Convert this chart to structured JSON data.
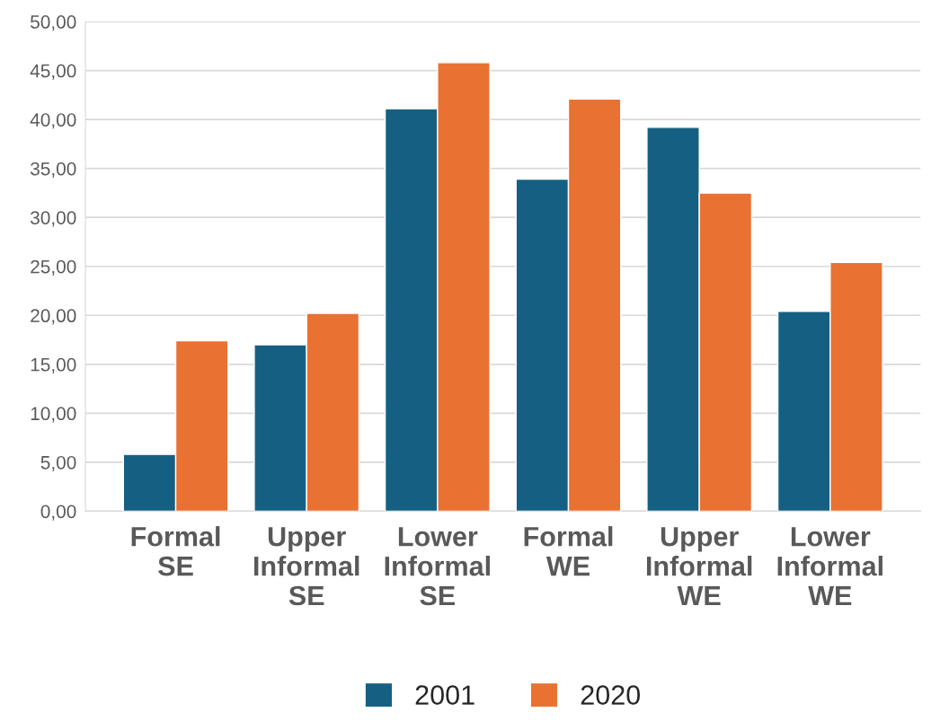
{
  "chart_data": {
    "type": "bar",
    "categories": [
      "Formal\nSE",
      "Upper\nInformal\nSE",
      "Lower\nInformal\nSE",
      "Formal\nWE",
      "Upper\nInformal\nWE",
      "Lower\nInformal\nWE"
    ],
    "series": [
      {
        "name": "2001",
        "color": "#156082",
        "values": [
          5.8,
          17.0,
          41.1,
          33.9,
          39.2,
          20.4
        ]
      },
      {
        "name": "2020",
        "color": "#e97132",
        "values": [
          17.4,
          20.2,
          45.8,
          42.1,
          32.5,
          25.4
        ]
      }
    ],
    "ylim": [
      0,
      50
    ],
    "yticks": [
      {
        "value": 0,
        "label": "0,00"
      },
      {
        "value": 5,
        "label": "5,00"
      },
      {
        "value": 10,
        "label": "10,00"
      },
      {
        "value": 15,
        "label": "15,00"
      },
      {
        "value": 20,
        "label": "20,00"
      },
      {
        "value": 25,
        "label": "25,00"
      },
      {
        "value": 30,
        "label": "30,00"
      },
      {
        "value": 35,
        "label": "35,00"
      },
      {
        "value": 40,
        "label": "40,00"
      },
      {
        "value": 45,
        "label": "45,00"
      },
      {
        "value": 50,
        "label": "50,00"
      }
    ],
    "grid": "y",
    "legend": "bottom"
  }
}
